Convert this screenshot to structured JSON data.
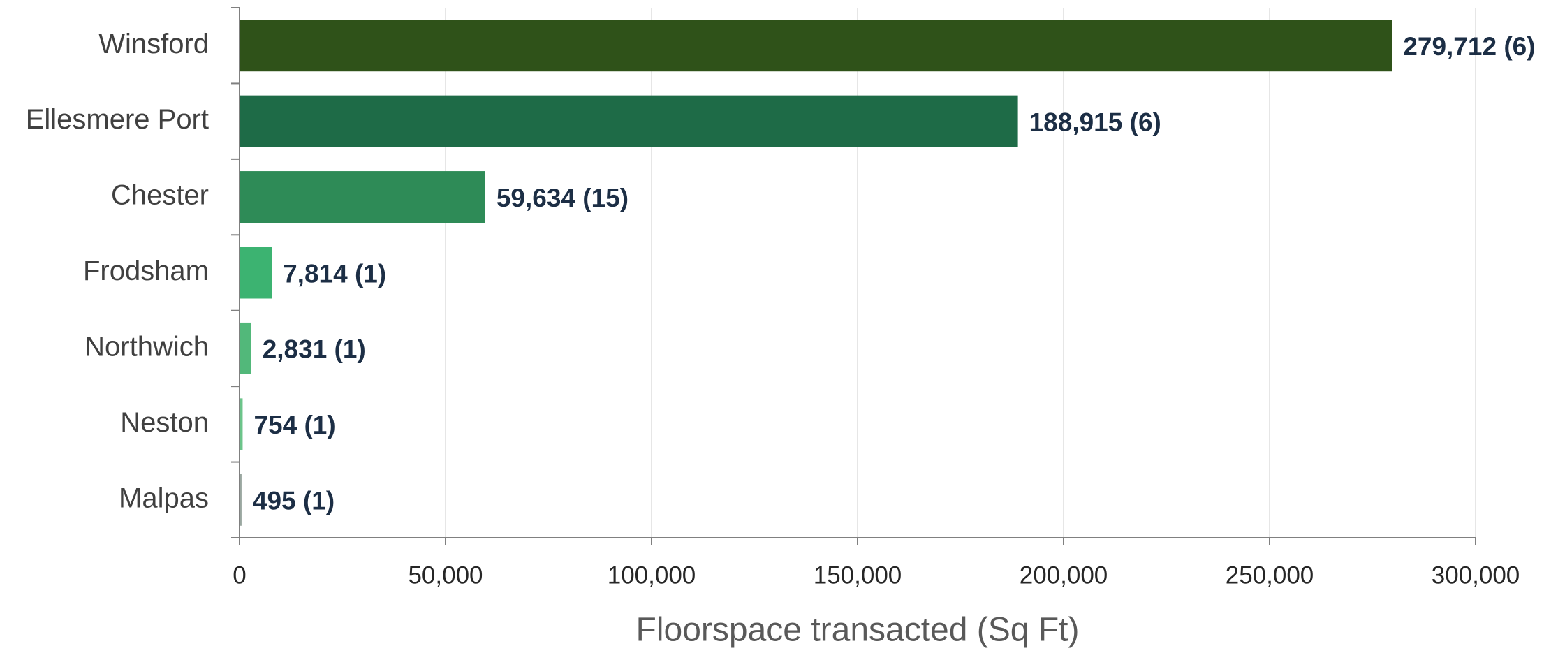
{
  "chart_data": {
    "type": "hbar",
    "xlabel": "Floorspace transacted (Sq Ft)",
    "categories": [
      "Winsford",
      "Ellesmere Port",
      "Chester",
      "Frodsham",
      "Northwich",
      "Neston",
      "Malpas"
    ],
    "values": [
      279712,
      188915,
      59634,
      7814,
      2831,
      754,
      495
    ],
    "value_labels": [
      "279,712 (6)",
      "188,915 (6)",
      "59,634 (15)",
      "7,814 (1)",
      "2,831 (1)",
      "754 (1)",
      "495 (1)"
    ],
    "colors": [
      "#2f5219",
      "#1e6b47",
      "#2e8b57",
      "#3cb371",
      "#52b87a",
      "#6cc48a",
      "#9aa7a0"
    ],
    "xlim": [
      0,
      300000
    ],
    "xticks": [
      0,
      {
        "value": 50000,
        "label": "50,000"
      },
      {
        "value": 100000,
        "label": "100,000"
      },
      {
        "value": 150000,
        "label": "150,000"
      },
      {
        "value": 200000,
        "label": "200,000"
      },
      {
        "value": 250000,
        "label": "250,000"
      },
      {
        "value": 300000,
        "label": "300,000"
      }
    ],
    "grid": true
  }
}
